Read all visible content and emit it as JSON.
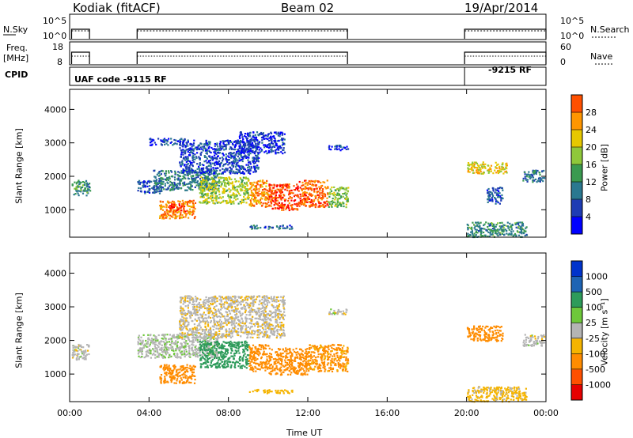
{
  "header": {
    "station": "Kodiak (fitACF)",
    "beam": "Beam 02",
    "date": "19/Apr/2014"
  },
  "panels": {
    "nsky": {
      "label": "N.Sky",
      "right_label": "N.Search",
      "left_ticks": [
        "10^5",
        "10^0"
      ],
      "right_ticks": [
        "10^5",
        "10^0"
      ]
    },
    "freq": {
      "label_line1": "Freq.",
      "label_line2": "[MHz]",
      "right_label": "Nave",
      "left_ticks": [
        "18",
        "8"
      ],
      "right_ticks": [
        "60",
        "0"
      ]
    },
    "cpid": {
      "label": "CPID",
      "text1": "UAF code -9115 RF",
      "text2": "-9215 RF"
    }
  },
  "chart_data": [
    {
      "type": "heatmap",
      "title": "",
      "xlabel": "Time UT",
      "ylabel": "Slant Range [km]",
      "x_ticks": [
        "00:00",
        "04:00",
        "08:00",
        "12:00",
        "16:00",
        "20:00",
        "00:00"
      ],
      "y_ticks": [
        "1000",
        "2000",
        "3000",
        "4000"
      ],
      "xlim_hours": [
        0,
        24
      ],
      "ylim_km": [
        180,
        4600
      ],
      "colorbar": {
        "label": "Power [dB]",
        "ticks": [
          "4",
          "8",
          "12",
          "16",
          "20",
          "24",
          "28"
        ],
        "range": [
          0,
          30
        ]
      }
    },
    {
      "type": "heatmap",
      "title": "",
      "xlabel": "Time UT",
      "ylabel": "Slant Range [km]",
      "x_ticks": [
        "00:00",
        "04:00",
        "08:00",
        "12:00",
        "16:00",
        "20:00",
        "00:00"
      ],
      "y_ticks": [
        "1000",
        "2000",
        "3000",
        "4000"
      ],
      "xlim_hours": [
        0,
        24
      ],
      "ylim_km": [
        180,
        4600
      ],
      "colorbar": {
        "label": "Velocity [m s⁻¹]",
        "ticks": [
          "1000",
          "500",
          "100",
          "25",
          "-25",
          "-100",
          "-500",
          "-1000"
        ]
      }
    }
  ],
  "colors": {
    "power_scale": [
      "#0000ff",
      "#1e3cb4",
      "#2a7890",
      "#3a9a50",
      "#8fc83a",
      "#e6c800",
      "#ff9600",
      "#ff5000",
      "#ff0000"
    ],
    "velocity_scale": [
      "#0033cc",
      "#1e64b4",
      "#2d9b5a",
      "#6ec83a",
      "#b4b4b4",
      "#f5b400",
      "#ff8c00",
      "#ff5000",
      "#e60000"
    ]
  },
  "scatter_blobs": {
    "power": [
      {
        "t0": 0.1,
        "t1": 1.0,
        "r0": 1450,
        "r1": 1900,
        "v": 10
      },
      {
        "t0": 3.4,
        "t1": 4.6,
        "r0": 1500,
        "r1": 1900,
        "v": 6
      },
      {
        "t0": 4.2,
        "t1": 7.5,
        "r0": 1600,
        "r1": 2200,
        "v": 9
      },
      {
        "t0": 5.5,
        "t1": 9.5,
        "r0": 2100,
        "r1": 3100,
        "v": 5
      },
      {
        "t0": 8.5,
        "t1": 10.8,
        "r0": 2700,
        "r1": 3350,
        "v": 4
      },
      {
        "t0": 4.5,
        "t1": 6.3,
        "r0": 750,
        "r1": 1300,
        "v": 22
      },
      {
        "t0": 5.0,
        "t1": 5.8,
        "r0": 950,
        "r1": 1200,
        "v": 27
      },
      {
        "t0": 6.5,
        "t1": 9.0,
        "r0": 1200,
        "r1": 2000,
        "v": 16
      },
      {
        "t0": 9.0,
        "t1": 10.0,
        "r0": 1100,
        "r1": 1900,
        "v": 22
      },
      {
        "t0": 10.0,
        "t1": 11.5,
        "r0": 1000,
        "r1": 1800,
        "v": 26
      },
      {
        "t0": 11.5,
        "t1": 13.0,
        "r0": 1100,
        "r1": 1900,
        "v": 24
      },
      {
        "t0": 13.0,
        "t1": 14.0,
        "r0": 1100,
        "r1": 1700,
        "v": 14
      },
      {
        "t0": 9.0,
        "t1": 11.2,
        "r0": 450,
        "r1": 560,
        "v": 7
      },
      {
        "t0": 4.0,
        "t1": 5.8,
        "r0": 2950,
        "r1": 3150,
        "v": 5
      },
      {
        "t0": 13.0,
        "t1": 14.0,
        "r0": 2800,
        "r1": 2950,
        "v": 5
      },
      {
        "t0": 20.0,
        "t1": 22.0,
        "r0": 2100,
        "r1": 2450,
        "v": 18
      },
      {
        "t0": 21.0,
        "t1": 21.8,
        "r0": 1200,
        "r1": 1700,
        "v": 6
      },
      {
        "t0": 22.8,
        "t1": 23.9,
        "r0": 1850,
        "r1": 2200,
        "v": 8
      },
      {
        "t0": 20.0,
        "t1": 23.0,
        "r0": 200,
        "r1": 650,
        "v": 10
      }
    ],
    "velocity": [
      {
        "t0": 0.1,
        "t1": 1.0,
        "r0": 1450,
        "r1": 1900,
        "v": 0
      },
      {
        "t0": 3.4,
        "t1": 7.5,
        "r0": 1500,
        "r1": 2200,
        "v": 10
      },
      {
        "t0": 5.5,
        "t1": 10.8,
        "r0": 2100,
        "r1": 3350,
        "v": -10
      },
      {
        "t0": 4.5,
        "t1": 6.3,
        "r0": 750,
        "r1": 1300,
        "v": -300
      },
      {
        "t0": 6.5,
        "t1": 9.0,
        "r0": 1200,
        "r1": 2000,
        "v": 150
      },
      {
        "t0": 9.0,
        "t1": 10.0,
        "r0": 1100,
        "r1": 1900,
        "v": -150
      },
      {
        "t0": 10.0,
        "t1": 12.0,
        "r0": 1000,
        "r1": 1800,
        "v": -200
      },
      {
        "t0": 12.0,
        "t1": 14.0,
        "r0": 1100,
        "r1": 1900,
        "v": -120
      },
      {
        "t0": 9.0,
        "t1": 11.2,
        "r0": 450,
        "r1": 560,
        "v": -60
      },
      {
        "t0": 13.0,
        "t1": 14.0,
        "r0": 2800,
        "r1": 2950,
        "v": 0
      },
      {
        "t0": 20.0,
        "t1": 21.8,
        "r0": 2000,
        "r1": 2450,
        "v": -200
      },
      {
        "t0": 22.8,
        "t1": 23.9,
        "r0": 1850,
        "r1": 2200,
        "v": 0
      },
      {
        "t0": 20.0,
        "t1": 23.0,
        "r0": 200,
        "r1": 650,
        "v": -40
      }
    ]
  }
}
